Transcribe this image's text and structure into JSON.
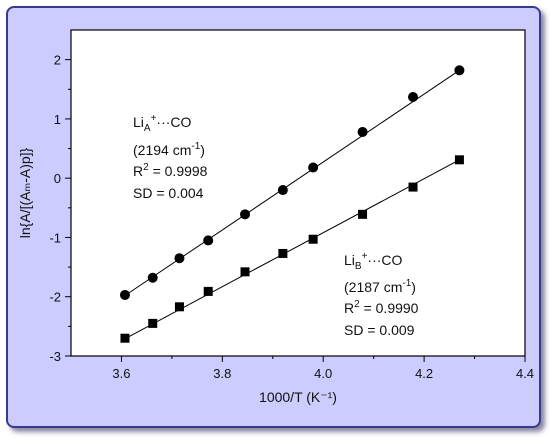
{
  "chart_data": {
    "type": "scatter",
    "xlabel": "1000/T (K⁻¹)",
    "ylabel": "ln{A/[(Aₘ-A)p]}",
    "xlim": [
      3.5,
      4.4
    ],
    "ylim": [
      -3,
      2.5
    ],
    "xticks": [
      "3.6",
      "3.8",
      "4.0",
      "4.2",
      "4.4"
    ],
    "yticks": [
      "-3",
      "-2",
      "-1",
      "0",
      "1",
      "2"
    ],
    "series": [
      {
        "name": "LiA+···CO",
        "marker": "circle",
        "x": [
          3.607,
          3.662,
          3.715,
          3.772,
          3.845,
          3.92,
          3.98,
          4.078,
          4.178,
          4.27
        ],
        "y": [
          -1.97,
          -1.68,
          -1.35,
          -1.05,
          -0.61,
          -0.2,
          0.18,
          0.78,
          1.37,
          1.82
        ],
        "fit": [
          [
            3.607,
            -1.98
          ],
          [
            4.27,
            1.82
          ]
        ]
      },
      {
        "name": "LiB+···CO",
        "marker": "square",
        "x": [
          3.607,
          3.662,
          3.715,
          3.772,
          3.845,
          3.92,
          3.98,
          4.078,
          4.178,
          4.27
        ],
        "y": [
          -2.7,
          -2.45,
          -2.17,
          -1.91,
          -1.58,
          -1.27,
          -1.03,
          -0.61,
          -0.15,
          0.31
        ],
        "fit": [
          [
            3.607,
            -2.71
          ],
          [
            4.27,
            0.31
          ]
        ]
      }
    ],
    "annotations": [
      {
        "label_main": "Li",
        "label_sub": "A",
        "label_sup": "+",
        "label_rest": "···CO",
        "freq_pre": "(2194 cm",
        "freq_sup": "-1",
        "freq_post": ")",
        "r2_pre": "R",
        "r2_sup": "2",
        "r2_post": " = 0.9998",
        "sd": "SD = 0.004"
      },
      {
        "label_main": "Li",
        "label_sub": "B",
        "label_sup": "+",
        "label_rest": "···CO",
        "freq_pre": "(2187 cm",
        "freq_sup": "-1",
        "freq_post": ")",
        "r2_pre": "R",
        "r2_sup": "2",
        "r2_post": " = 0.9990",
        "sd": "SD = 0.009"
      }
    ],
    "grid": false
  },
  "colors": {
    "frame_background": "#ccccff",
    "frame_border": "#3a3a8c",
    "plot_background": "#ffffff",
    "marker": "#000000"
  }
}
